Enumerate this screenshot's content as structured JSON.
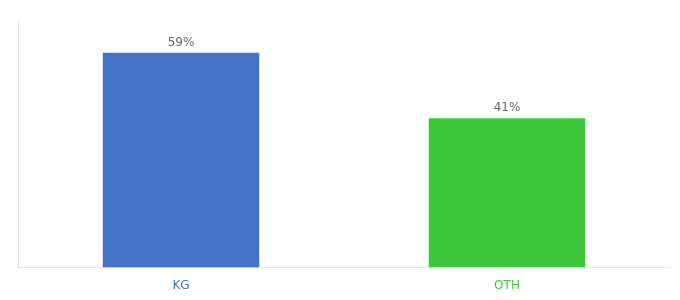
{
  "chart_data": {
    "type": "bar",
    "categories": [
      "KG",
      "OTH"
    ],
    "values": [
      59,
      41
    ],
    "value_labels": [
      "59%",
      "41%"
    ],
    "colors": [
      "#4472C4",
      "#3CC73C"
    ],
    "ylim": [
      0,
      68
    ],
    "yticks": [],
    "grid": false,
    "data_labels": true,
    "tick_labels": "x"
  }
}
